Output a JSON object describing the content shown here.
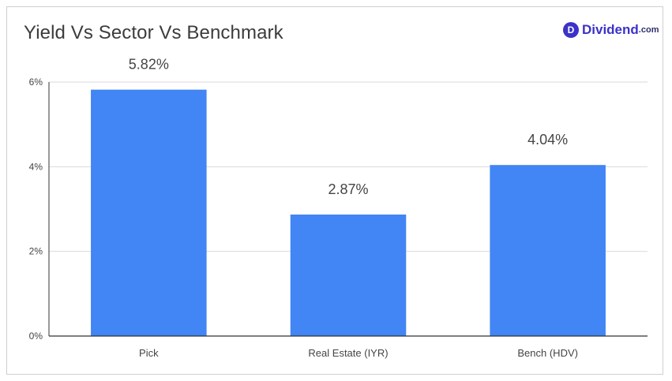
{
  "header": {
    "title": "Yield Vs Sector Vs Benchmark",
    "brand_badge": "D",
    "brand_name": "Dividend",
    "brand_suffix": ".com"
  },
  "colors": {
    "bar": "#4285f4",
    "brand": "#3b32c8",
    "grid": "#d9d9d9",
    "axis": "#333333",
    "text": "#444444"
  },
  "chart_data": {
    "type": "bar",
    "title": "Yield Vs Sector Vs Benchmark",
    "categories": [
      "Pick",
      "Real Estate (IYR)",
      "Bench (HDV)"
    ],
    "values": [
      5.82,
      2.87,
      4.04
    ],
    "data_labels": [
      "5.82%",
      "2.87%",
      "4.04%"
    ],
    "ylim": [
      0,
      6
    ],
    "yticks": [
      0,
      2,
      4,
      6
    ],
    "ytick_labels": [
      "0%",
      "2%",
      "4%",
      "6%"
    ],
    "xlabel": "",
    "ylabel": "",
    "grid": true,
    "legend": "none"
  }
}
